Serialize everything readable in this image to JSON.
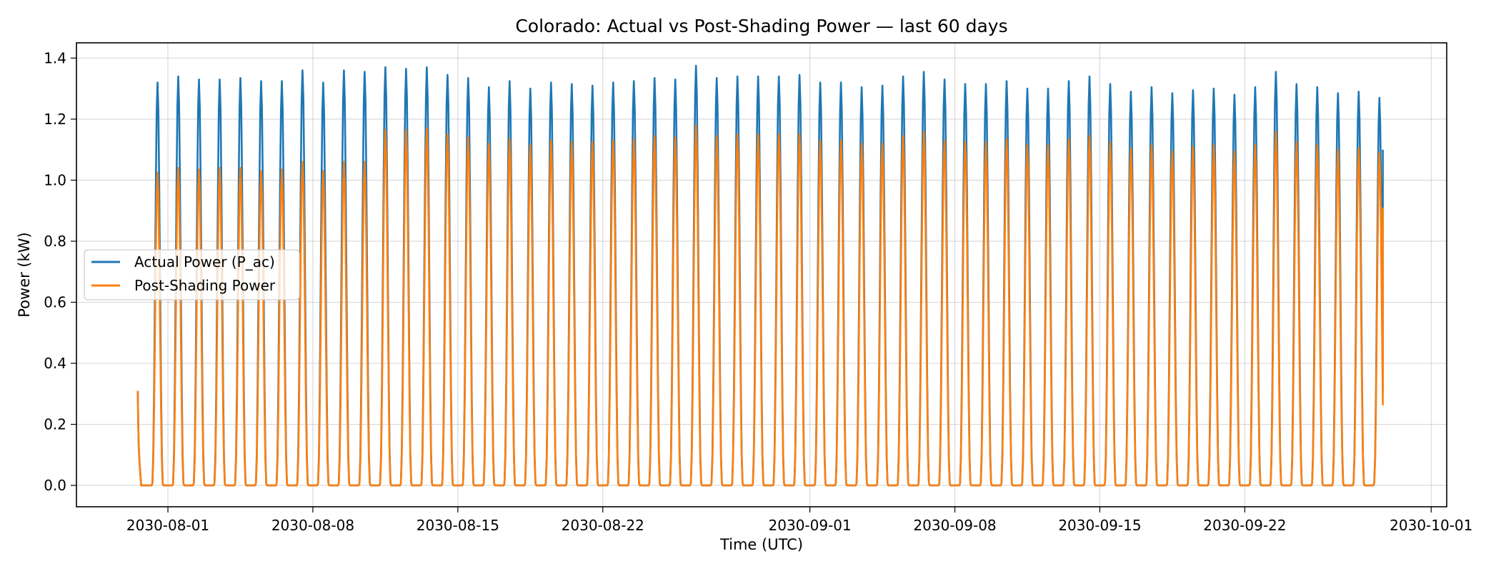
{
  "chart_data": {
    "type": "line",
    "title": "Colorado: Actual vs Post-Shading Power — last 60 days",
    "xlabel": "Time (UTC)",
    "ylabel": "Power (kW)",
    "xlim": [
      "2030-07-27T14:00",
      "2030-10-01T18:00"
    ],
    "ylim": [
      -0.07,
      1.45
    ],
    "grid": true,
    "legend": "center-left",
    "x_ticks": [
      {
        "date": "2030-08-01",
        "label": "2030-08-01"
      },
      {
        "date": "2030-08-08",
        "label": "2030-08-08"
      },
      {
        "date": "2030-08-15",
        "label": "2030-08-15"
      },
      {
        "date": "2030-08-22",
        "label": "2030-08-22"
      },
      {
        "date": "2030-09-01",
        "label": "2030-09-01"
      },
      {
        "date": "2030-09-08",
        "label": "2030-09-08"
      },
      {
        "date": "2030-09-15",
        "label": "2030-09-15"
      },
      {
        "date": "2030-09-22",
        "label": "2030-09-22"
      },
      {
        "date": "2030-10-01",
        "label": "2030-10-01"
      }
    ],
    "y_ticks": [
      {
        "value": 0.0,
        "label": "0.0"
      },
      {
        "value": 0.2,
        "label": "0.2"
      },
      {
        "value": 0.4,
        "label": "0.4"
      },
      {
        "value": 0.6,
        "label": "0.6"
      },
      {
        "value": 0.8,
        "label": "0.8"
      },
      {
        "value": 1.0,
        "label": "1.0"
      },
      {
        "value": 1.2,
        "label": "1.2"
      },
      {
        "value": 1.4,
        "label": "1.4"
      }
    ],
    "series": [
      {
        "name": "Actual Power (P_ac)",
        "color": "#1f77b4",
        "start": "2030-07-30T13:00",
        "start_value": 0.31,
        "end": "2030-09-28T16:00",
        "end_value": 1.1,
        "daily_peaks": {
          "time": "12:00",
          "dates": [
            "2030-07-31",
            "2030-08-01",
            "2030-08-02",
            "2030-08-03",
            "2030-08-04",
            "2030-08-05",
            "2030-08-06",
            "2030-08-07",
            "2030-08-08",
            "2030-08-09",
            "2030-08-10",
            "2030-08-11",
            "2030-08-12",
            "2030-08-13",
            "2030-08-14",
            "2030-08-15",
            "2030-08-16",
            "2030-08-17",
            "2030-08-18",
            "2030-08-19",
            "2030-08-20",
            "2030-08-21",
            "2030-08-22",
            "2030-08-23",
            "2030-08-24",
            "2030-08-25",
            "2030-08-26",
            "2030-08-27",
            "2030-08-28",
            "2030-08-29",
            "2030-08-30",
            "2030-08-31",
            "2030-09-01",
            "2030-09-02",
            "2030-09-03",
            "2030-09-04",
            "2030-09-05",
            "2030-09-06",
            "2030-09-07",
            "2030-09-08",
            "2030-09-09",
            "2030-09-10",
            "2030-09-11",
            "2030-09-12",
            "2030-09-13",
            "2030-09-14",
            "2030-09-15",
            "2030-09-16",
            "2030-09-17",
            "2030-09-18",
            "2030-09-19",
            "2030-09-20",
            "2030-09-21",
            "2030-09-22",
            "2030-09-23",
            "2030-09-24",
            "2030-09-25",
            "2030-09-26",
            "2030-09-27",
            "2030-09-28"
          ],
          "values": [
            1.32,
            1.34,
            1.33,
            1.33,
            1.335,
            1.325,
            1.325,
            1.36,
            1.32,
            1.36,
            1.355,
            1.37,
            1.365,
            1.37,
            1.345,
            1.335,
            1.305,
            1.325,
            1.3,
            1.32,
            1.315,
            1.31,
            1.32,
            1.325,
            1.335,
            1.33,
            1.375,
            1.335,
            1.34,
            1.34,
            1.34,
            1.345,
            1.32,
            1.32,
            1.305,
            1.31,
            1.34,
            1.355,
            1.33,
            1.315,
            1.315,
            1.325,
            1.3,
            1.3,
            1.325,
            1.34,
            1.315,
            1.29,
            1.305,
            1.285,
            1.295,
            1.3,
            1.28,
            1.305,
            1.355,
            1.315,
            1.305,
            1.285,
            1.29,
            1.27
          ]
        }
      },
      {
        "name": "Post-Shading Power",
        "color": "#ff7f0e",
        "start": "2030-07-30T13:00",
        "start_value": 0.31,
        "end": "2030-09-28T16:00",
        "end_value": 0.91,
        "daily_peaks": {
          "time": "12:00",
          "dates": [
            "2030-07-31",
            "2030-08-01",
            "2030-08-02",
            "2030-08-03",
            "2030-08-04",
            "2030-08-05",
            "2030-08-06",
            "2030-08-07",
            "2030-08-08",
            "2030-08-09",
            "2030-08-10",
            "2030-08-11",
            "2030-08-12",
            "2030-08-13",
            "2030-08-14",
            "2030-08-15",
            "2030-08-16",
            "2030-08-17",
            "2030-08-18",
            "2030-08-19",
            "2030-08-20",
            "2030-08-21",
            "2030-08-22",
            "2030-08-23",
            "2030-08-24",
            "2030-08-25",
            "2030-08-26",
            "2030-08-27",
            "2030-08-28",
            "2030-08-29",
            "2030-08-30",
            "2030-08-31",
            "2030-09-01",
            "2030-09-02",
            "2030-09-03",
            "2030-09-04",
            "2030-09-05",
            "2030-09-06",
            "2030-09-07",
            "2030-09-08",
            "2030-09-09",
            "2030-09-10",
            "2030-09-11",
            "2030-09-12",
            "2030-09-13",
            "2030-09-14",
            "2030-09-15",
            "2030-09-16",
            "2030-09-17",
            "2030-09-18",
            "2030-09-19",
            "2030-09-20",
            "2030-09-21",
            "2030-09-22",
            "2030-09-23",
            "2030-09-24",
            "2030-09-25",
            "2030-09-26",
            "2030-09-27",
            "2030-09-28"
          ],
          "values": [
            1.025,
            1.04,
            1.035,
            1.04,
            1.04,
            1.03,
            1.035,
            1.06,
            1.03,
            1.06,
            1.06,
            1.165,
            1.165,
            1.17,
            1.15,
            1.14,
            1.12,
            1.135,
            1.115,
            1.13,
            1.125,
            1.125,
            1.13,
            1.135,
            1.145,
            1.14,
            1.18,
            1.145,
            1.15,
            1.15,
            1.15,
            1.15,
            1.13,
            1.13,
            1.12,
            1.12,
            1.145,
            1.16,
            1.13,
            1.125,
            1.125,
            1.135,
            1.115,
            1.115,
            1.135,
            1.145,
            1.125,
            1.105,
            1.115,
            1.095,
            1.11,
            1.115,
            1.095,
            1.115,
            1.16,
            1.125,
            1.115,
            1.1,
            1.105,
            1.09
          ]
        }
      }
    ]
  }
}
